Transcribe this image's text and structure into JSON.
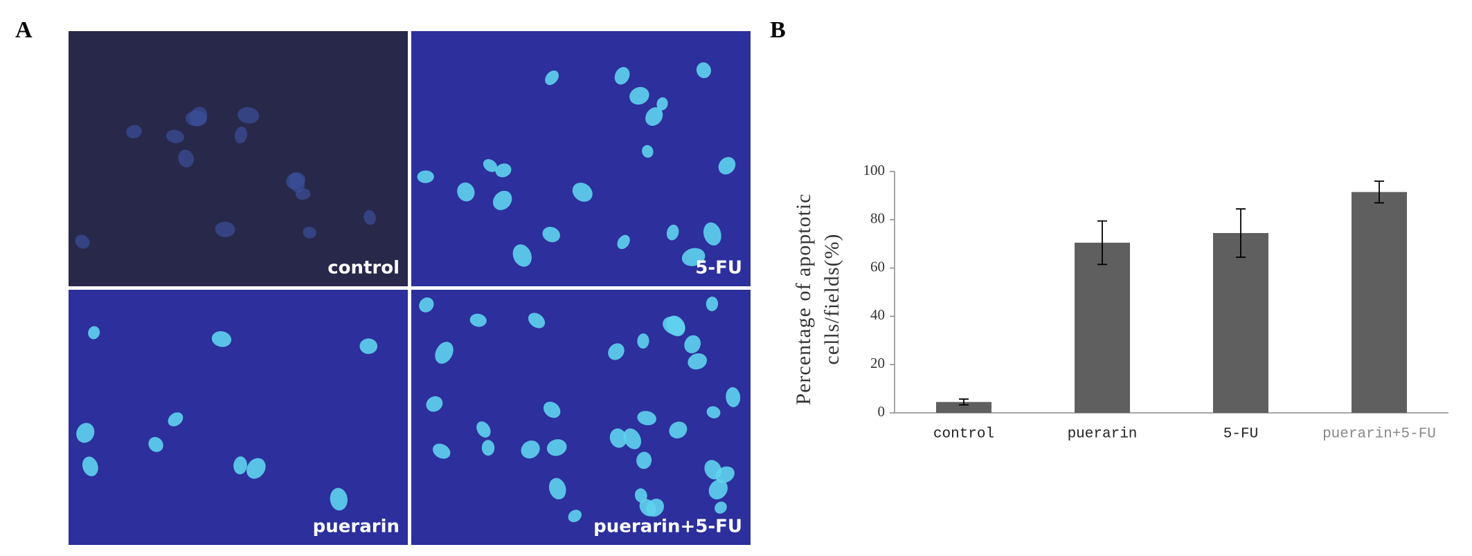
{
  "panel_labels": [
    "A",
    "B"
  ],
  "micrographs": [
    {
      "label": "control"
    },
    {
      "label": "5-FU"
    },
    {
      "label": "puerarin"
    },
    {
      "label": "puerarin+5-FU"
    }
  ],
  "chart_data": {
    "type": "bar",
    "y_label": [
      "Percentage of apoptotic",
      "cells/fields(%)"
    ],
    "categories": [
      "control",
      "puerarin",
      "5-FU",
      "puerarin+5-FU"
    ],
    "values": [
      4.5,
      70.5,
      74.5,
      91.5
    ],
    "errors": [
      1.2,
      9,
      10,
      4.5
    ],
    "color": "#5f5f5f",
    "ylim": [
      0,
      100
    ],
    "yticks": [
      0,
      20,
      40,
      60,
      80,
      100
    ],
    "grid": false
  }
}
